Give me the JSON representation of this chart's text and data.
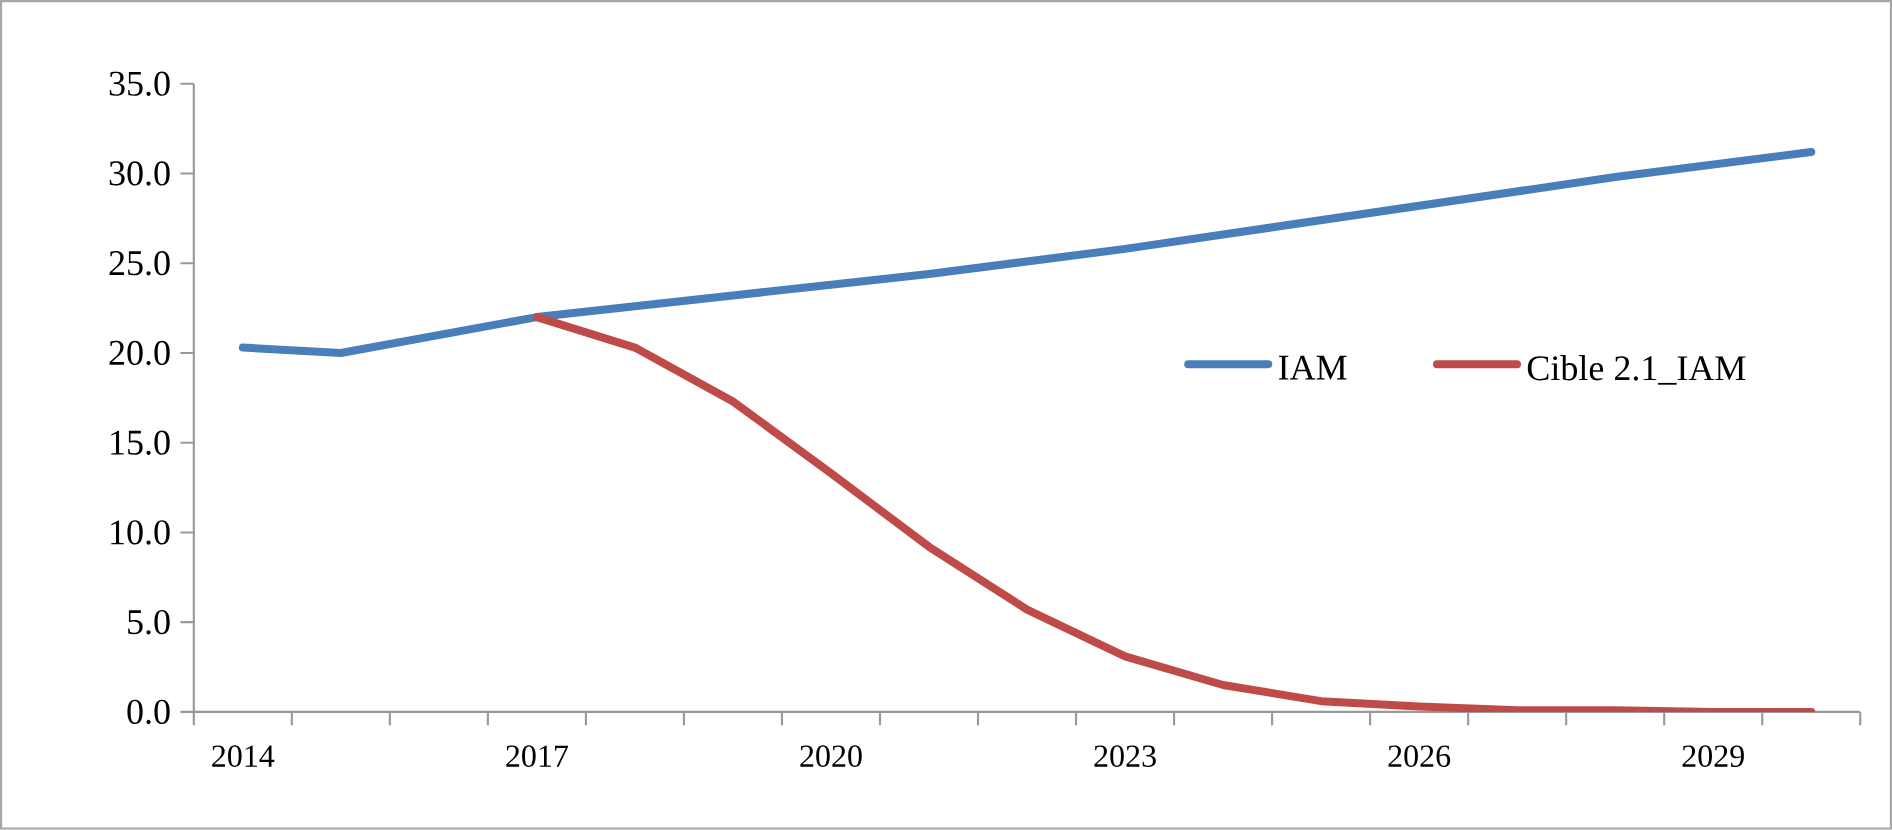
{
  "chart_data": {
    "type": "line",
    "categories": [
      "2014",
      null,
      null,
      "2017",
      null,
      null,
      "2020",
      null,
      null,
      "2023",
      null,
      null,
      "2026",
      null,
      null,
      "2029",
      null
    ],
    "series": [
      {
        "name": "IAM",
        "color": "#4a7ebb",
        "values": [
          20.3,
          20.0,
          21.0,
          22.0,
          22.6,
          23.2,
          23.8,
          24.4,
          25.1,
          25.8,
          26.6,
          27.4,
          28.2,
          29.0,
          29.8,
          30.5,
          31.2
        ]
      },
      {
        "name": "Cible 2.1_IAM",
        "color": "#be4b48",
        "values": [
          null,
          null,
          null,
          22.0,
          20.3,
          17.3,
          13.3,
          9.2,
          5.7,
          3.1,
          1.5,
          0.6,
          0.3,
          0.1,
          0.1,
          0.0,
          0.0
        ]
      }
    ],
    "ylim": [
      0,
      35
    ],
    "yticks": [
      {
        "value": 0,
        "label": "0.0"
      },
      {
        "value": 5,
        "label": "5.0"
      },
      {
        "value": 10,
        "label": "10.0"
      },
      {
        "value": 15,
        "label": "15.0"
      },
      {
        "value": 20,
        "label": "20.0"
      },
      {
        "value": 25,
        "label": "25.0"
      },
      {
        "value": 30,
        "label": "30.0"
      },
      {
        "value": 35,
        "label": "35.0"
      }
    ],
    "grid": false,
    "legend": "right",
    "marker": "none",
    "line_style": "solid"
  }
}
